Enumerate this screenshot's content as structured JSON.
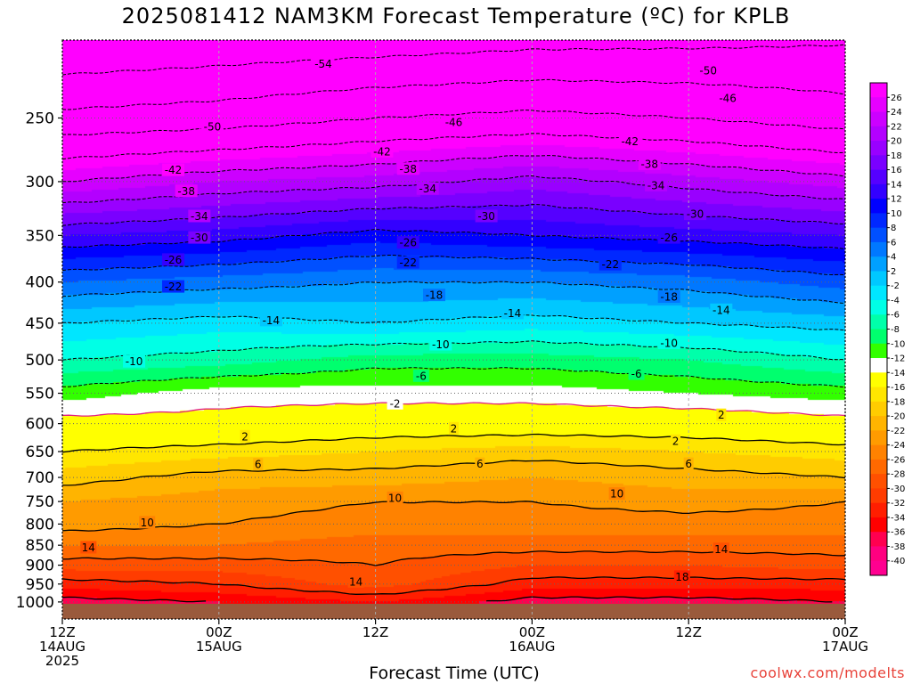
{
  "title": "2025081412 NAM3KM Forecast Temperature (ºC) for KPLB",
  "credit": "coolwx.com/modelts",
  "chart_data": {
    "type": "heatmap",
    "title": "2025081412 NAM3KM Forecast Temperature (ºC) for KPLB",
    "xlabel": "Forecast Time (UTC)",
    "ylabel": "",
    "y_scale": "log-pressure (hPa), inverted",
    "ylim": [
      1050,
      200
    ],
    "x_hours": [
      0,
      60
    ],
    "y_ticks": [
      250,
      300,
      350,
      400,
      450,
      500,
      550,
      600,
      650,
      700,
      750,
      800,
      850,
      900,
      950,
      1000
    ],
    "x_ticks": [
      {
        "hour": 0,
        "label": [
          "12Z",
          "14AUG",
          "2025"
        ]
      },
      {
        "hour": 12,
        "label": [
          "00Z",
          "15AUG"
        ]
      },
      {
        "hour": 24,
        "label": [
          "12Z"
        ]
      },
      {
        "hour": 36,
        "label": [
          "00Z",
          "16AUG"
        ]
      },
      {
        "hour": 48,
        "label": [
          "12Z"
        ]
      },
      {
        "hour": 60,
        "label": [
          "00Z",
          "17AUG"
        ]
      }
    ],
    "grid": true,
    "colorbar": {
      "position": "right",
      "labels": [
        26,
        24,
        22,
        20,
        18,
        16,
        14,
        12,
        10,
        8,
        6,
        4,
        2,
        -2,
        -4,
        -6,
        -8,
        -10,
        -12,
        -14,
        -16,
        -18,
        -20,
        -22,
        -24,
        -26,
        -28,
        -30,
        -32,
        -34,
        -36,
        -38,
        -40
      ],
      "colors": [
        "#ff00ff",
        "#e600ff",
        "#cc00ff",
        "#b300ff",
        "#9900ff",
        "#7a00ff",
        "#5500ff",
        "#3300ff",
        "#0000ff",
        "#0028ff",
        "#0050ff",
        "#0078ff",
        "#00a0ff",
        "#00c8ff",
        "#00e6ff",
        "#00ffe6",
        "#00ffaa",
        "#00ff6e",
        "#32ff00",
        "#ffffff",
        "#ffff00",
        "#ffe600",
        "#ffcc00",
        "#ffb400",
        "#ff9b00",
        "#ff8200",
        "#ff6900",
        "#ff5000",
        "#ff3c00",
        "#ff1e00",
        "#ff0000",
        "#ff0050",
        "#ff0080",
        "#ff0090"
      ]
    },
    "temperature_profiles": [
      {
        "hour": 0,
        "levels": [
          1000,
          950,
          900,
          850,
          800,
          750,
          700,
          650,
          600,
          550,
          500,
          450,
          400,
          350,
          300,
          250,
          210
        ],
        "temps": [
          23,
          19,
          15,
          12,
          9,
          8,
          5,
          2,
          -1,
          -5,
          -10,
          -14,
          -20,
          -28,
          -38,
          -49,
          -56
        ]
      },
      {
        "hour": 12,
        "levels": [
          1000,
          950,
          900,
          850,
          800,
          750,
          700,
          650,
          600,
          550,
          500,
          450,
          400,
          350,
          300,
          250,
          210
        ],
        "temps": [
          22,
          18,
          15,
          12,
          10,
          9,
          7,
          3,
          -1,
          -3,
          -9,
          -13,
          -19,
          -27,
          -36,
          -48,
          -55
        ]
      },
      {
        "hour": 24,
        "levels": [
          1000,
          950,
          900,
          850,
          800,
          750,
          700,
          650,
          600,
          550,
          500,
          450,
          400,
          350,
          300,
          250,
          210
        ],
        "temps": [
          20,
          15,
          14,
          13,
          11,
          10,
          7,
          4,
          0,
          -3,
          -7,
          -14,
          -18,
          -25,
          -35,
          -46,
          -54
        ]
      },
      {
        "hour": 36,
        "levels": [
          1000,
          950,
          900,
          850,
          800,
          750,
          700,
          650,
          600,
          550,
          500,
          450,
          400,
          350,
          300,
          250,
          210
        ],
        "temps": [
          23,
          19,
          16,
          13,
          11,
          10,
          8,
          5,
          0,
          -3,
          -7,
          -13,
          -18,
          -26,
          -33,
          -45,
          -53
        ]
      },
      {
        "hour": 48,
        "levels": [
          1000,
          950,
          900,
          850,
          800,
          750,
          700,
          650,
          600,
          550,
          500,
          450,
          400,
          350,
          300,
          250,
          210
        ],
        "temps": [
          23,
          19,
          16,
          13,
          11,
          9,
          7,
          4,
          0,
          -4,
          -8,
          -14,
          -19,
          -27,
          -35,
          -46,
          -53
        ]
      },
      {
        "hour": 60,
        "levels": [
          1000,
          950,
          900,
          850,
          800,
          750,
          700,
          650,
          600,
          550,
          500,
          450,
          400,
          350,
          300,
          250,
          210
        ],
        "temps": [
          22,
          19,
          15,
          13,
          11,
          10,
          6,
          3,
          -1,
          -5,
          -10,
          -15,
          -21,
          -28,
          -37,
          -48,
          -53
        ]
      }
    ],
    "contour_labels": [
      {
        "value": -54,
        "hour": 20.0,
        "p": 214
      },
      {
        "value": -50,
        "hour": 49.5,
        "p": 218
      },
      {
        "value": -50,
        "hour": 11.5,
        "p": 256
      },
      {
        "value": -46,
        "hour": 30.0,
        "p": 253
      },
      {
        "value": -46,
        "hour": 51.0,
        "p": 236
      },
      {
        "value": -42,
        "hour": 8.5,
        "p": 290
      },
      {
        "value": -42,
        "hour": 24.5,
        "p": 275
      },
      {
        "value": -42,
        "hour": 43.5,
        "p": 267
      },
      {
        "value": -38,
        "hour": 9.5,
        "p": 308
      },
      {
        "value": -38,
        "hour": 26.5,
        "p": 289
      },
      {
        "value": -38,
        "hour": 45.0,
        "p": 285
      },
      {
        "value": -34,
        "hour": 10.5,
        "p": 331
      },
      {
        "value": -34,
        "hour": 28.0,
        "p": 306
      },
      {
        "value": -34,
        "hour": 45.5,
        "p": 303
      },
      {
        "value": -30,
        "hour": 10.5,
        "p": 352
      },
      {
        "value": -30,
        "hour": 32.5,
        "p": 331
      },
      {
        "value": -30,
        "hour": 48.5,
        "p": 329
      },
      {
        "value": -26,
        "hour": 8.5,
        "p": 375
      },
      {
        "value": -26,
        "hour": 26.5,
        "p": 357
      },
      {
        "value": -26,
        "hour": 46.5,
        "p": 352
      },
      {
        "value": -22,
        "hour": 8.5,
        "p": 405
      },
      {
        "value": -22,
        "hour": 26.5,
        "p": 378
      },
      {
        "value": -22,
        "hour": 42.0,
        "p": 380
      },
      {
        "value": -18,
        "hour": 28.5,
        "p": 415
      },
      {
        "value": -18,
        "hour": 46.5,
        "p": 417
      },
      {
        "value": -14,
        "hour": 16.0,
        "p": 446
      },
      {
        "value": -14,
        "hour": 34.5,
        "p": 437
      },
      {
        "value": -14,
        "hour": 50.5,
        "p": 433
      },
      {
        "value": -10,
        "hour": 5.5,
        "p": 502
      },
      {
        "value": -10,
        "hour": 29.0,
        "p": 478
      },
      {
        "value": -10,
        "hour": 46.5,
        "p": 476
      },
      {
        "value": -6,
        "hour": 27.5,
        "p": 523
      },
      {
        "value": -6,
        "hour": 44.0,
        "p": 520
      },
      {
        "value": -2,
        "hour": 25.5,
        "p": 566
      },
      {
        "value": 2,
        "hour": 50.5,
        "p": 585
      },
      {
        "value": 2,
        "hour": 14.0,
        "p": 622
      },
      {
        "value": 2,
        "hour": 30.0,
        "p": 608
      },
      {
        "value": 2,
        "hour": 47.0,
        "p": 630
      },
      {
        "value": 6,
        "hour": 15.0,
        "p": 674
      },
      {
        "value": 6,
        "hour": 32.0,
        "p": 673
      },
      {
        "value": 6,
        "hour": 48.0,
        "p": 673
      },
      {
        "value": 10,
        "hour": 25.5,
        "p": 742
      },
      {
        "value": 10,
        "hour": 42.5,
        "p": 733
      },
      {
        "value": 10,
        "hour": 6.5,
        "p": 796
      },
      {
        "value": 14,
        "hour": 2.0,
        "p": 855
      },
      {
        "value": 14,
        "hour": 22.5,
        "p": 943
      },
      {
        "value": 14,
        "hour": 50.5,
        "p": 859
      },
      {
        "value": 18,
        "hour": 47.5,
        "p": 930
      }
    ]
  }
}
